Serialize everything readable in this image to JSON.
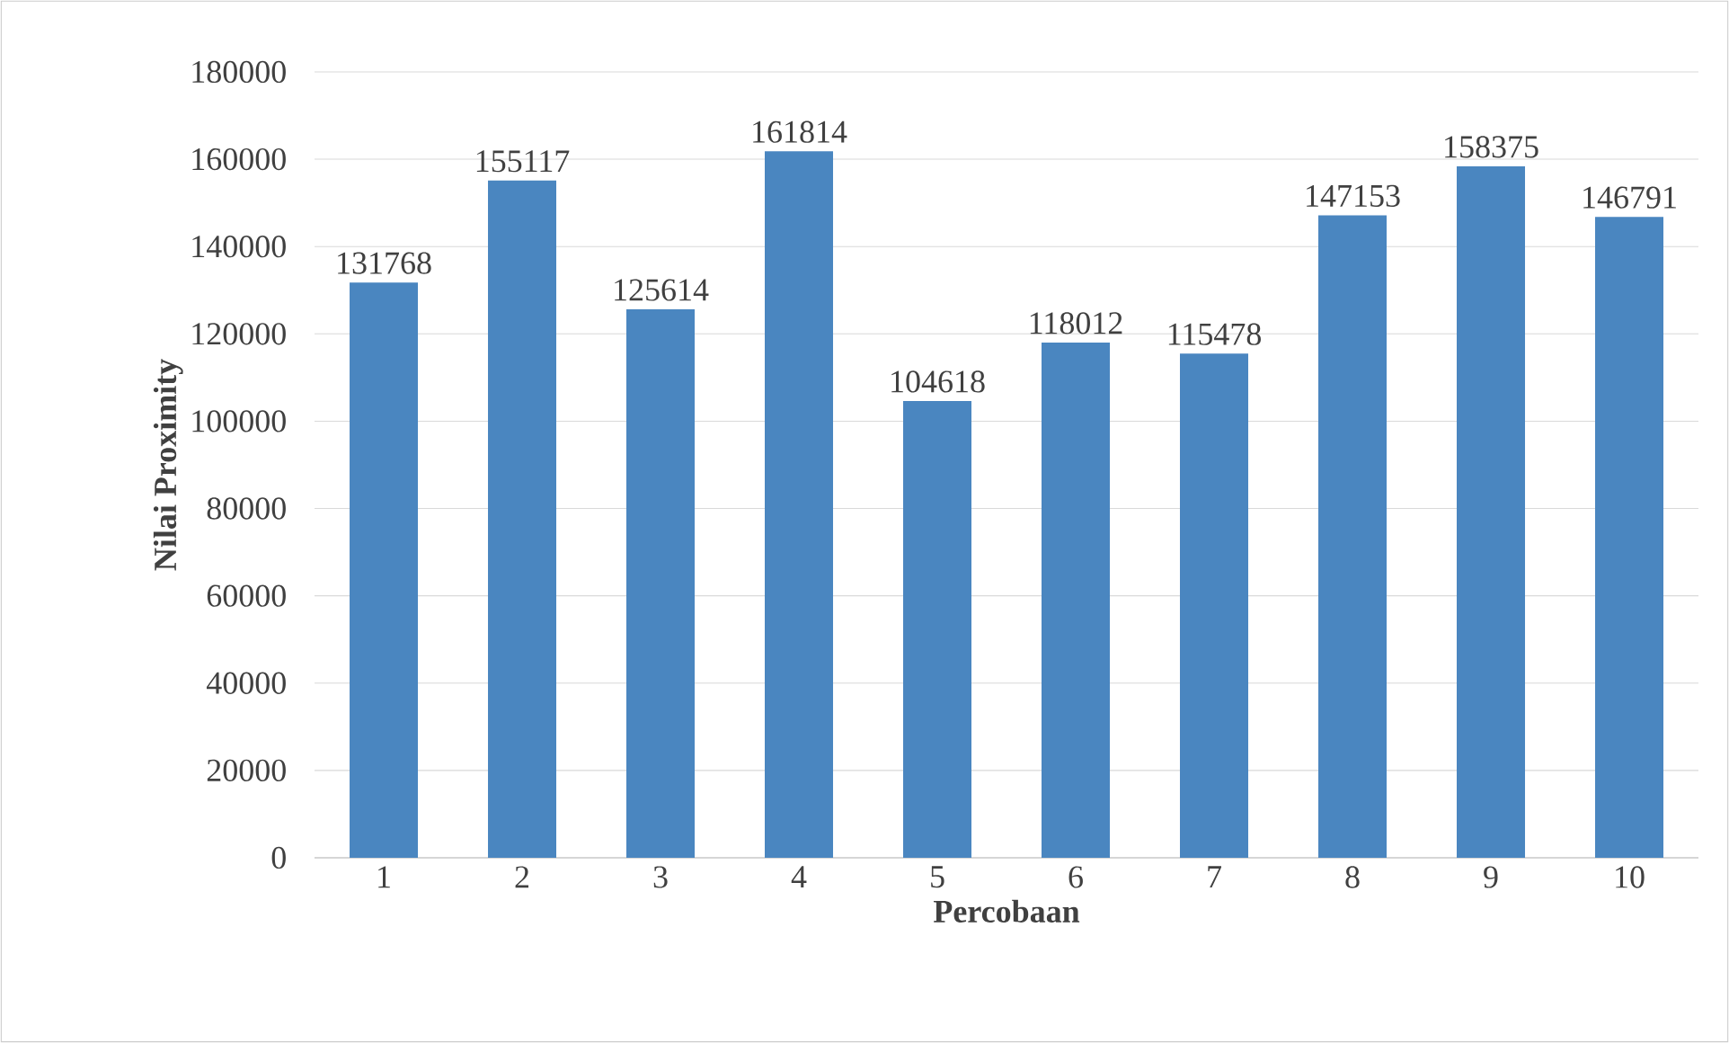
{
  "chart_data": {
    "type": "bar",
    "xlabel": "Percobaan",
    "ylabel": "Nilai Proximity",
    "categories": [
      "1",
      "2",
      "3",
      "4",
      "5",
      "6",
      "7",
      "8",
      "9",
      "10"
    ],
    "values": [
      131768,
      155117,
      125614,
      161814,
      104618,
      118012,
      115478,
      147153,
      158375,
      146791
    ],
    "color": "#4a86c0",
    "ylim": [
      0,
      180000
    ],
    "yticks": [
      0,
      20000,
      40000,
      60000,
      80000,
      100000,
      120000,
      140000,
      160000,
      180000
    ],
    "grid": "y",
    "data_labels": true
  }
}
